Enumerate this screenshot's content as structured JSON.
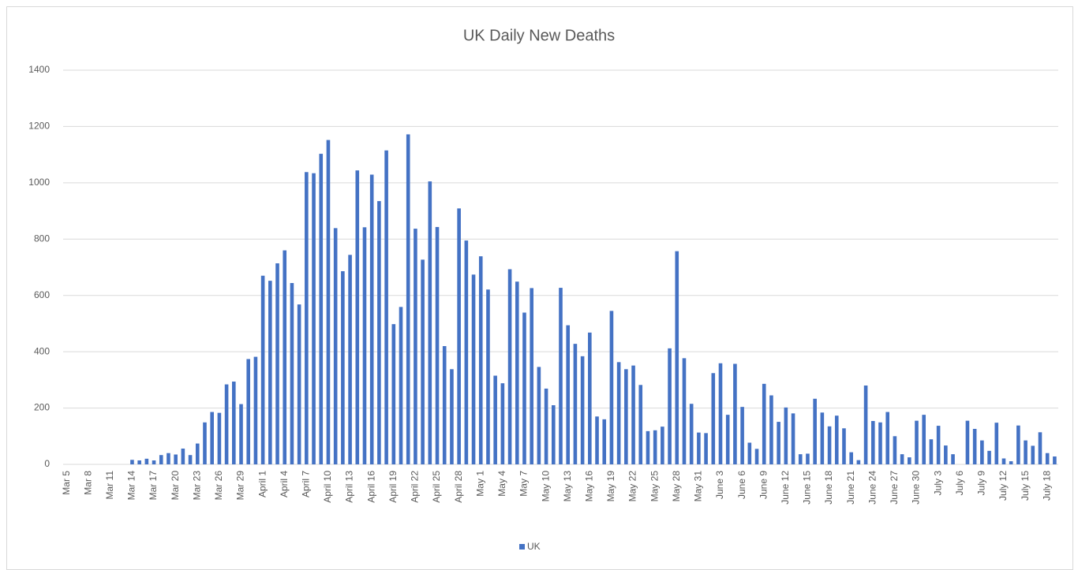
{
  "chart_data": {
    "type": "bar",
    "title": "UK Daily New Deaths",
    "categories": [
      "Mar 5",
      null,
      null,
      "Mar 8",
      null,
      null,
      "Mar 11",
      null,
      null,
      "Mar 14",
      null,
      null,
      "Mar 17",
      null,
      null,
      "Mar 20",
      null,
      null,
      "Mar 23",
      null,
      null,
      "Mar 26",
      null,
      null,
      "Mar 29",
      null,
      null,
      "April 1",
      null,
      null,
      "April 4",
      null,
      null,
      "April 7",
      null,
      null,
      "April 10",
      null,
      null,
      "April 13",
      null,
      null,
      "April 16",
      null,
      null,
      "April 19",
      null,
      null,
      "April 22",
      null,
      null,
      "April 25",
      null,
      null,
      "April 28",
      null,
      null,
      "May 1",
      null,
      null,
      "May 4",
      null,
      null,
      "May 7",
      null,
      null,
      "May 10",
      null,
      null,
      "May 13",
      null,
      null,
      "May 16",
      null,
      null,
      "May 19",
      null,
      null,
      "May 22",
      null,
      null,
      "May 25",
      null,
      null,
      "May 28",
      null,
      null,
      "May 31",
      null,
      null,
      "June 3",
      null,
      null,
      "June 6",
      null,
      null,
      "June 9",
      null,
      null,
      "June 12",
      null,
      null,
      "June 15",
      null,
      null,
      "June 18",
      null,
      null,
      "June 21",
      null,
      null,
      "June 24",
      null,
      null,
      "June 27",
      null,
      null,
      "June 30",
      null,
      null,
      "July 3",
      null,
      null,
      "July 6",
      null,
      null,
      "July 9",
      null,
      null,
      "July 12",
      null,
      null,
      "July 15",
      null,
      null,
      "July 18",
      null
    ],
    "series": [
      {
        "name": "UK",
        "color": "#4472c4",
        "values": [
          0,
          0,
          0,
          0,
          0,
          0,
          0,
          0,
          0,
          16,
          14,
          20,
          14,
          33,
          40,
          35,
          56,
          33,
          74,
          149,
          186,
          183,
          284,
          294,
          214,
          374,
          382,
          670,
          652,
          714,
          760,
          644,
          568,
          1038,
          1034,
          1103,
          1152,
          839,
          686,
          744,
          1044,
          842,
          1029,
          935,
          1115,
          498,
          559,
          1172,
          837,
          727,
          1005,
          843,
          420,
          338,
          909,
          795,
          674,
          739,
          621,
          315,
          288,
          693,
          649,
          539,
          626,
          346,
          269,
          210,
          627,
          494,
          428,
          384,
          468,
          170,
          160,
          545,
          363,
          338,
          351,
          282,
          118,
          121,
          134,
          412,
          757,
          377,
          215,
          113,
          111,
          324,
          359,
          176,
          357,
          204,
          77,
          55,
          286,
          245,
          151,
          202,
          181,
          36,
          38,
          233,
          184,
          135,
          173,
          128,
          43,
          15,
          280,
          154,
          149,
          186,
          100,
          36,
          25,
          155,
          176,
          89,
          137,
          67,
          36,
          0,
          155,
          126,
          85,
          48,
          148,
          21,
          11,
          138,
          85,
          66,
          114,
          40,
          28
        ]
      }
    ],
    "ylim": [
      0,
      1400
    ],
    "yticks": [
      0,
      200,
      400,
      600,
      800,
      1000,
      1200,
      1400
    ],
    "grid": true,
    "legend": "bottom"
  }
}
